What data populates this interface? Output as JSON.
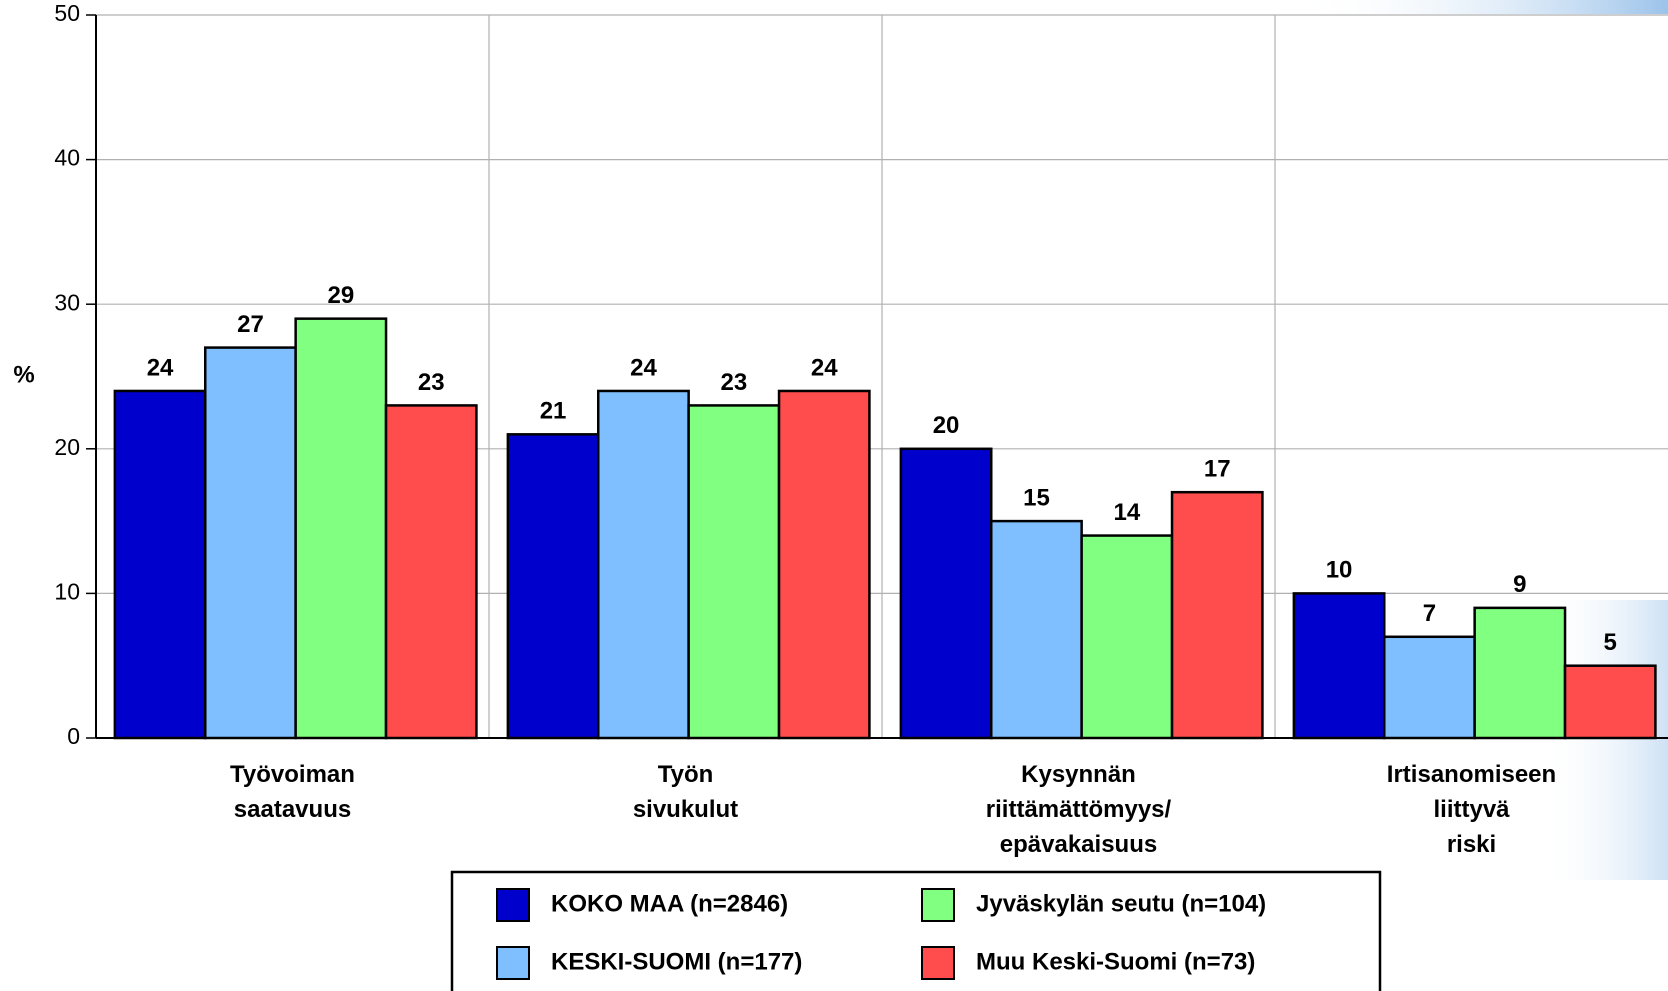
{
  "chart_data": {
    "type": "bar",
    "y_label": "%",
    "categories": [
      "Työvoiman saatavuus",
      "Työn sivukulut",
      "Kysynnän riittämättömyys/ epävakaisuus",
      "Irtisanomiseen liittyvä riski"
    ],
    "series": [
      {
        "name": "KOKO MAA (n=2846)",
        "color": "#0000cc",
        "values": [
          24,
          21,
          20,
          10
        ]
      },
      {
        "name": "KESKI-SUOMI (n=177)",
        "color": "#80bfff",
        "values": [
          27,
          24,
          15,
          7
        ]
      },
      {
        "name": "Jyväskylän seutu (n=104)",
        "color": "#80ff80",
        "values": [
          29,
          23,
          14,
          9
        ]
      },
      {
        "name": "Muu Keski-Suomi (n=73)",
        "color": "#ff4d4d",
        "values": [
          23,
          24,
          17,
          5
        ]
      }
    ],
    "ylim": [
      0,
      50
    ],
    "yticks": [
      0,
      10,
      20,
      30,
      40,
      50
    ],
    "grid": true
  }
}
